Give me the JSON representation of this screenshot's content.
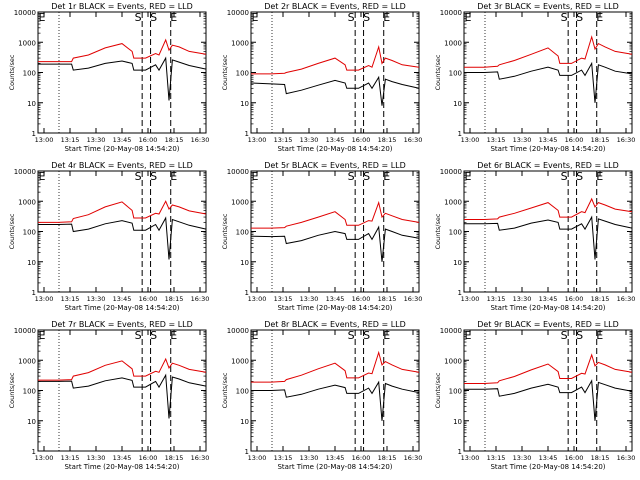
{
  "layout_note_free": true,
  "panel_common": {
    "ylabel": "Counts/sec",
    "xlabel": "Start Time (20-May-08 14:54:20)",
    "x_tick_labels": [
      "13:00",
      "13:15",
      "13:30",
      "13:45",
      "16:00",
      "18:15",
      "16:30"
    ],
    "y_tick_labels": [
      "1",
      "10",
      "100",
      "1000",
      "10000"
    ],
    "marker_labels": {
      "left": "E",
      "s1": "S",
      "s2": "S",
      "e2": "E"
    },
    "colors": {
      "black_series": "#000000",
      "red_series": "#e00000",
      "axes": "#000000"
    }
  },
  "chart_data": [
    {
      "type": "line",
      "title": "Det 1r BLACK = Events, RED = LLD",
      "ylim": [
        1,
        10000
      ],
      "y_scale": "log",
      "xlim": [
        0,
        100
      ],
      "series": [
        {
          "name": "Events",
          "color": "#000000",
          "x": [
            0,
            12,
            20,
            21,
            30,
            40,
            50,
            56,
            57,
            64,
            70,
            72,
            76,
            78,
            80,
            84,
            90,
            100
          ],
          "y": [
            190,
            190,
            190,
            120,
            140,
            200,
            240,
            200,
            120,
            120,
            180,
            120,
            300,
            12,
            260,
            220,
            170,
            130
          ]
        },
        {
          "name": "LLD",
          "color": "#e00000",
          "x": [
            0,
            12,
            20,
            21,
            30,
            40,
            50,
            56,
            57,
            64,
            70,
            72,
            76,
            78,
            80,
            84,
            90,
            100
          ],
          "y": [
            230,
            230,
            230,
            300,
            380,
            650,
            900,
            500,
            300,
            300,
            420,
            380,
            1200,
            550,
            800,
            700,
            500,
            400
          ]
        }
      ]
    },
    {
      "type": "line",
      "title": "Det 2r BLACK = Events, RED = LLD",
      "ylim": [
        1,
        10000
      ],
      "y_scale": "log",
      "xlim": [
        0,
        100
      ],
      "series": [
        {
          "name": "Events",
          "color": "#000000",
          "x": [
            0,
            12,
            20,
            21,
            30,
            40,
            50,
            56,
            57,
            64,
            70,
            72,
            76,
            78,
            80,
            84,
            90,
            100
          ],
          "y": [
            45,
            42,
            40,
            20,
            26,
            38,
            55,
            45,
            30,
            30,
            45,
            30,
            70,
            8,
            60,
            50,
            40,
            30
          ]
        },
        {
          "name": "LLD",
          "color": "#e00000",
          "x": [
            0,
            12,
            20,
            21,
            30,
            40,
            50,
            56,
            57,
            64,
            70,
            72,
            76,
            78,
            80,
            84,
            90,
            100
          ],
          "y": [
            90,
            90,
            95,
            100,
            130,
            200,
            300,
            180,
            120,
            120,
            170,
            150,
            700,
            200,
            300,
            250,
            180,
            150
          ]
        }
      ]
    },
    {
      "type": "line",
      "title": "Det 3r BLACK = Events, RED = LLD",
      "ylim": [
        1,
        10000
      ],
      "y_scale": "log",
      "xlim": [
        0,
        100
      ],
      "series": [
        {
          "name": "Events",
          "color": "#000000",
          "x": [
            0,
            12,
            20,
            21,
            30,
            40,
            50,
            56,
            57,
            64,
            70,
            72,
            76,
            78,
            80,
            84,
            90,
            100
          ],
          "y": [
            100,
            100,
            105,
            60,
            75,
            110,
            150,
            120,
            80,
            80,
            120,
            80,
            200,
            10,
            180,
            150,
            110,
            90
          ]
        },
        {
          "name": "LLD",
          "color": "#e00000",
          "x": [
            0,
            12,
            20,
            21,
            30,
            40,
            50,
            56,
            57,
            64,
            70,
            72,
            76,
            78,
            80,
            84,
            90,
            100
          ],
          "y": [
            150,
            150,
            160,
            180,
            250,
            400,
            650,
            350,
            200,
            200,
            300,
            280,
            1500,
            600,
            900,
            700,
            500,
            400
          ]
        }
      ]
    },
    {
      "type": "line",
      "title": "Det 4r BLACK = Events, RED = LLD",
      "ylim": [
        1,
        10000
      ],
      "y_scale": "log",
      "xlim": [
        0,
        100
      ],
      "series": [
        {
          "name": "Events",
          "color": "#000000",
          "x": [
            0,
            12,
            20,
            21,
            30,
            40,
            50,
            56,
            57,
            64,
            70,
            72,
            76,
            78,
            80,
            84,
            90,
            100
          ],
          "y": [
            170,
            170,
            175,
            100,
            120,
            180,
            230,
            190,
            110,
            110,
            170,
            110,
            280,
            12,
            250,
            210,
            160,
            120
          ]
        },
        {
          "name": "LLD",
          "color": "#e00000",
          "x": [
            0,
            12,
            20,
            21,
            30,
            40,
            50,
            56,
            57,
            64,
            70,
            72,
            76,
            78,
            80,
            84,
            90,
            100
          ],
          "y": [
            200,
            200,
            210,
            270,
            360,
            650,
            950,
            500,
            280,
            280,
            400,
            380,
            1000,
            550,
            750,
            650,
            480,
            380
          ]
        }
      ]
    },
    {
      "type": "line",
      "title": "Det 5r BLACK = Events, RED = LLD",
      "ylim": [
        1,
        10000
      ],
      "y_scale": "log",
      "xlim": [
        0,
        100
      ],
      "series": [
        {
          "name": "Events",
          "color": "#000000",
          "x": [
            0,
            12,
            20,
            21,
            30,
            40,
            50,
            56,
            57,
            64,
            70,
            72,
            76,
            78,
            80,
            84,
            90,
            100
          ],
          "y": [
            70,
            68,
            70,
            40,
            50,
            75,
            100,
            85,
            55,
            55,
            85,
            55,
            140,
            10,
            120,
            100,
            75,
            60
          ]
        },
        {
          "name": "LLD",
          "color": "#e00000",
          "x": [
            0,
            12,
            20,
            21,
            30,
            40,
            50,
            56,
            57,
            64,
            70,
            72,
            76,
            78,
            80,
            84,
            90,
            100
          ],
          "y": [
            130,
            130,
            135,
            150,
            200,
            300,
            450,
            250,
            160,
            160,
            230,
            220,
            900,
            300,
            400,
            330,
            250,
            200
          ]
        }
      ]
    },
    {
      "type": "line",
      "title": "Det 6r BLACK = Events, RED = LLD",
      "ylim": [
        1,
        10000
      ],
      "y_scale": "log",
      "xlim": [
        0,
        100
      ],
      "series": [
        {
          "name": "Events",
          "color": "#000000",
          "x": [
            0,
            12,
            20,
            21,
            30,
            40,
            50,
            56,
            57,
            64,
            70,
            72,
            76,
            78,
            80,
            84,
            90,
            100
          ],
          "y": [
            180,
            180,
            185,
            110,
            130,
            190,
            240,
            200,
            120,
            120,
            180,
            120,
            300,
            12,
            260,
            220,
            170,
            130
          ]
        },
        {
          "name": "LLD",
          "color": "#e00000",
          "x": [
            0,
            12,
            20,
            21,
            30,
            40,
            50,
            56,
            57,
            64,
            70,
            72,
            76,
            78,
            80,
            84,
            90,
            100
          ],
          "y": [
            250,
            250,
            260,
            300,
            400,
            600,
            900,
            500,
            300,
            300,
            450,
            420,
            1200,
            650,
            900,
            750,
            550,
            450
          ]
        }
      ]
    },
    {
      "type": "line",
      "title": "Det 7r BLACK = Events, RED = LLD",
      "ylim": [
        1,
        10000
      ],
      "y_scale": "log",
      "xlim": [
        0,
        100
      ],
      "series": [
        {
          "name": "Events",
          "color": "#000000",
          "x": [
            0,
            12,
            20,
            21,
            30,
            40,
            50,
            56,
            57,
            64,
            70,
            72,
            76,
            78,
            80,
            84,
            90,
            100
          ],
          "y": [
            200,
            200,
            205,
            120,
            140,
            210,
            260,
            215,
            130,
            130,
            200,
            130,
            320,
            12,
            280,
            240,
            180,
            140
          ]
        },
        {
          "name": "LLD",
          "color": "#e00000",
          "x": [
            0,
            12,
            20,
            21,
            30,
            40,
            50,
            56,
            57,
            64,
            70,
            72,
            76,
            78,
            80,
            84,
            90,
            100
          ],
          "y": [
            220,
            220,
            230,
            300,
            390,
            680,
            950,
            520,
            300,
            300,
            430,
            400,
            1100,
            560,
            800,
            680,
            500,
            400
          ]
        }
      ]
    },
    {
      "type": "line",
      "title": "Det 8r BLACK = Events, RED = LLD",
      "ylim": [
        1,
        10000
      ],
      "y_scale": "log",
      "xlim": [
        0,
        100
      ],
      "series": [
        {
          "name": "Events",
          "color": "#000000",
          "x": [
            0,
            12,
            20,
            21,
            30,
            40,
            50,
            56,
            57,
            64,
            70,
            72,
            76,
            78,
            80,
            84,
            90,
            100
          ],
          "y": [
            100,
            100,
            105,
            60,
            75,
            110,
            150,
            125,
            80,
            80,
            120,
            80,
            190,
            10,
            170,
            140,
            110,
            85
          ]
        },
        {
          "name": "LLD",
          "color": "#e00000",
          "x": [
            0,
            12,
            20,
            21,
            30,
            40,
            50,
            56,
            57,
            64,
            70,
            72,
            76,
            78,
            80,
            84,
            90,
            100
          ],
          "y": [
            190,
            190,
            200,
            230,
            320,
            520,
            800,
            450,
            260,
            260,
            380,
            360,
            1800,
            700,
            900,
            700,
            500,
            400
          ]
        }
      ]
    },
    {
      "type": "line",
      "title": "Det 9r BLACK = Events, RED = LLD",
      "ylim": [
        1,
        10000
      ],
      "y_scale": "log",
      "xlim": [
        0,
        100
      ],
      "series": [
        {
          "name": "Events",
          "color": "#000000",
          "x": [
            0,
            12,
            20,
            21,
            30,
            40,
            50,
            56,
            57,
            64,
            70,
            72,
            76,
            78,
            80,
            84,
            90,
            100
          ],
          "y": [
            110,
            110,
            115,
            65,
            80,
            120,
            160,
            130,
            85,
            85,
            130,
            85,
            210,
            10,
            185,
            155,
            120,
            95
          ]
        },
        {
          "name": "LLD",
          "color": "#e00000",
          "x": [
            0,
            12,
            20,
            21,
            30,
            40,
            50,
            56,
            57,
            64,
            70,
            72,
            76,
            78,
            80,
            84,
            90,
            100
          ],
          "y": [
            170,
            170,
            180,
            210,
            290,
            480,
            750,
            420,
            250,
            250,
            370,
            350,
            1500,
            650,
            850,
            700,
            500,
            400
          ]
        }
      ]
    }
  ],
  "vertical_markers_x": {
    "dotted": [
      12.5
    ],
    "dashed_s1": [
      62
    ],
    "dashed_s2": [
      67
    ],
    "dashed_e2": [
      79
    ]
  }
}
